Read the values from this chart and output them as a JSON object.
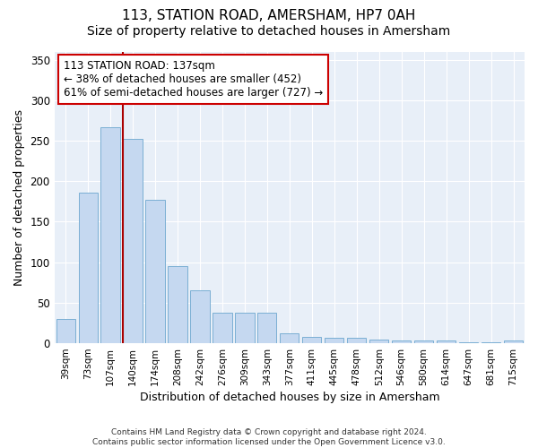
{
  "title": "113, STATION ROAD, AMERSHAM, HP7 0AH",
  "subtitle": "Size of property relative to detached houses in Amersham",
  "xlabel": "Distribution of detached houses by size in Amersham",
  "ylabel": "Number of detached properties",
  "categories": [
    "39sqm",
    "73sqm",
    "107sqm",
    "140sqm",
    "174sqm",
    "208sqm",
    "242sqm",
    "276sqm",
    "309sqm",
    "343sqm",
    "377sqm",
    "411sqm",
    "445sqm",
    "478sqm",
    "512sqm",
    "546sqm",
    "580sqm",
    "614sqm",
    "647sqm",
    "681sqm",
    "715sqm"
  ],
  "values": [
    30,
    186,
    267,
    252,
    177,
    95,
    65,
    38,
    38,
    38,
    12,
    8,
    7,
    7,
    5,
    3,
    3,
    3,
    1,
    1,
    3
  ],
  "bar_color": "#c5d8f0",
  "bar_edgecolor": "#7bafd4",
  "vline_color": "#aa0000",
  "ylim": [
    0,
    360
  ],
  "yticks": [
    0,
    50,
    100,
    150,
    200,
    250,
    300,
    350
  ],
  "annotation_line1": "113 STATION ROAD: 137sqm",
  "annotation_line2": "← 38% of detached houses are smaller (452)",
  "annotation_line3": "61% of semi-detached houses are larger (727) →",
  "background_color": "#e8eff8",
  "footer": "Contains HM Land Registry data © Crown copyright and database right 2024.\nContains public sector information licensed under the Open Government Licence v3.0.",
  "title_fontsize": 11,
  "subtitle_fontsize": 10,
  "xlabel_fontsize": 9,
  "ylabel_fontsize": 9,
  "annotation_fontsize": 8.5,
  "footer_fontsize": 6.5
}
